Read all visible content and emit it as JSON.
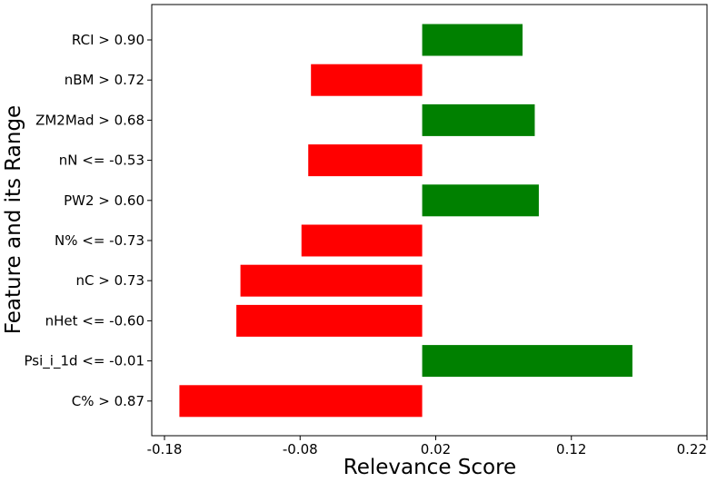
{
  "chart_data": {
    "type": "bar",
    "orientation": "horizontal",
    "title": "",
    "xlabel": "Relevance Score",
    "ylabel": "Feature and its Range",
    "xlim": [
      -0.18,
      0.22
    ],
    "xticks": [
      -0.18,
      -0.08,
      0.02,
      0.12,
      0.22
    ],
    "xtick_labels": [
      "-0.18",
      "-0.08",
      "0.02",
      "0.12",
      "0.22"
    ],
    "grid": false,
    "categories": [
      "RCI > 0.90",
      "nBM > 0.72",
      "ZM2Mad > 0.68",
      "nN <= -0.53",
      "PW2 > 0.60",
      "N% <= -0.73",
      "nC > 0.73",
      "nHet <= -0.60",
      "Psi_i_1d <= -0.01",
      "C% > 0.87"
    ],
    "values": [
      0.074,
      -0.082,
      0.083,
      -0.084,
      0.086,
      -0.089,
      -0.134,
      -0.137,
      0.155,
      -0.179
    ],
    "colors": {
      "positive": "#008000",
      "negative": "#ff0000"
    }
  }
}
